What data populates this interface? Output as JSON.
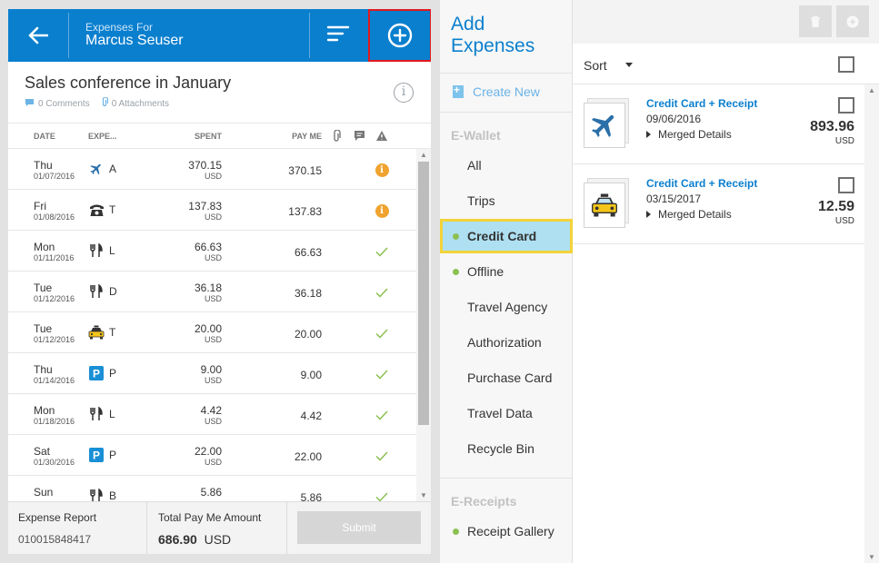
{
  "header": {
    "subtitle": "Expenses For",
    "user_name": "Marcus Seuser"
  },
  "report": {
    "title": "Sales conference in January",
    "comments": "0 Comments",
    "attachments": "0 Attachments"
  },
  "table": {
    "columns": {
      "date": "DATE",
      "expense": "EXPE...",
      "spent": "SPENT",
      "payme": "PAY ME"
    },
    "rows": [
      {
        "day": "Thu",
        "date": "01/07/2016",
        "icon": "airplane-icon",
        "type": "A",
        "spent": "370.15",
        "currency": "USD",
        "payme": "370.15",
        "status": "warning"
      },
      {
        "day": "Fri",
        "date": "01/08/2016",
        "icon": "telephone-icon",
        "type": "T",
        "spent": "137.83",
        "currency": "USD",
        "payme": "137.83",
        "status": "warning"
      },
      {
        "day": "Mon",
        "date": "01/11/2016",
        "icon": "fork-knife-icon",
        "type": "L",
        "spent": "66.63",
        "currency": "USD",
        "payme": "66.63",
        "status": "ok"
      },
      {
        "day": "Tue",
        "date": "01/12/2016",
        "icon": "fork-knife-icon",
        "type": "D",
        "spent": "36.18",
        "currency": "USD",
        "payme": "36.18",
        "status": "ok"
      },
      {
        "day": "Tue",
        "date": "01/12/2016",
        "icon": "taxi-icon",
        "type": "T",
        "spent": "20.00",
        "currency": "USD",
        "payme": "20.00",
        "status": "ok"
      },
      {
        "day": "Thu",
        "date": "01/14/2016",
        "icon": "parking-icon",
        "type": "P",
        "spent": "9.00",
        "currency": "USD",
        "payme": "9.00",
        "status": "ok"
      },
      {
        "day": "Mon",
        "date": "01/18/2016",
        "icon": "fork-knife-icon",
        "type": "L",
        "spent": "4.42",
        "currency": "USD",
        "payme": "4.42",
        "status": "ok"
      },
      {
        "day": "Sat",
        "date": "01/30/2016",
        "icon": "parking-icon",
        "type": "P",
        "spent": "22.00",
        "currency": "USD",
        "payme": "22.00",
        "status": "ok"
      },
      {
        "day": "Sun",
        "date": "",
        "icon": "fork-knife-icon",
        "type": "B",
        "spent": "5.86",
        "currency": "",
        "payme": "5.86",
        "status": "ok"
      }
    ]
  },
  "footer": {
    "report_label": "Expense Report",
    "report_id": "010015848417",
    "total_label": "Total Pay Me Amount",
    "total_value": "686.90",
    "total_currency": "USD",
    "submit_label": "Submit"
  },
  "nav": {
    "title_line1": "Add",
    "title_line2": "Expenses",
    "create_new": "Create New",
    "ewallet_header": "E-Wallet",
    "ewallet_items": [
      {
        "label": "All",
        "dot": false,
        "active": false
      },
      {
        "label": "Trips",
        "dot": false,
        "active": false
      },
      {
        "label": "Credit Card",
        "dot": true,
        "active": true
      },
      {
        "label": "Offline",
        "dot": true,
        "active": false
      },
      {
        "label": "Travel Agency",
        "dot": false,
        "active": false
      },
      {
        "label": "Authorization",
        "dot": false,
        "active": false
      },
      {
        "label": "Purchase Card",
        "dot": false,
        "active": false
      },
      {
        "label": "Travel Data",
        "dot": false,
        "active": false
      },
      {
        "label": "Recycle Bin",
        "dot": false,
        "active": false
      }
    ],
    "ereceipts_header": "E-Receipts",
    "receipt_gallery": "Receipt Gallery"
  },
  "right": {
    "sort_label": "Sort",
    "items": [
      {
        "title": "Credit Card + Receipt",
        "date": "09/06/2016",
        "merged": "Merged Details",
        "amount": "893.96",
        "currency": "USD",
        "icon": "airplane-icon"
      },
      {
        "title": "Credit Card + Receipt",
        "date": "03/15/2017",
        "merged": "Merged Details",
        "amount": "12.59",
        "currency": "USD",
        "icon": "taxi-icon"
      }
    ]
  },
  "colors": {
    "header_blue": "#0a7fce",
    "highlight_red": "#e0191f",
    "active_bg": "#aee0f1",
    "active_border": "#f3d33a",
    "status_ok": "#8cc152",
    "status_warning": "#f0a32e"
  }
}
